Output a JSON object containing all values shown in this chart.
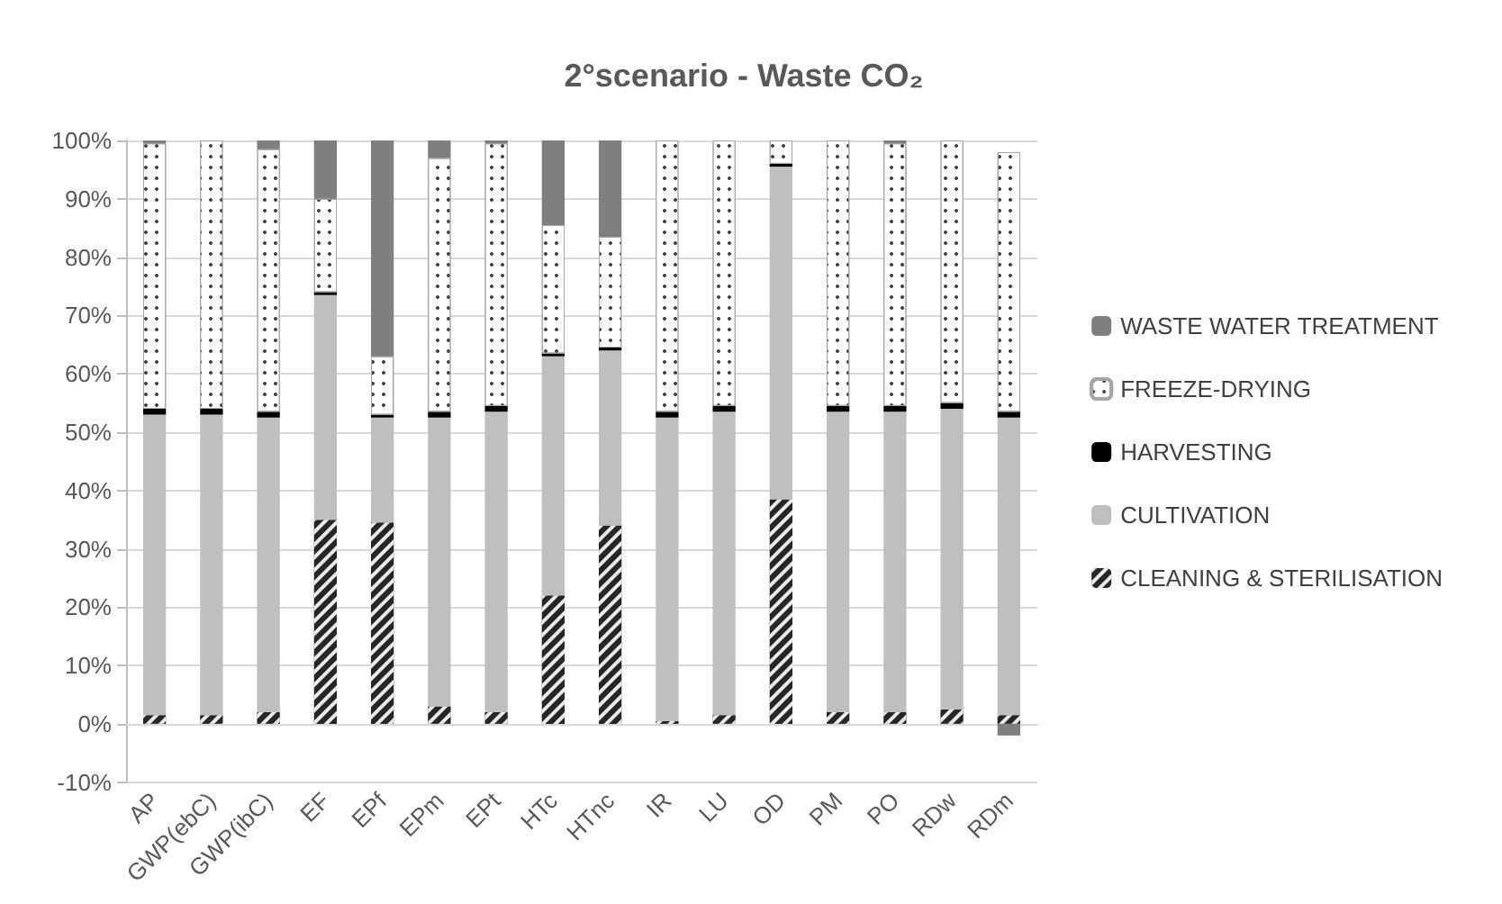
{
  "chart_data": {
    "type": "bar",
    "title": "2°scenario - Waste CO₂",
    "stacked": true,
    "grid": "y",
    "legend": "right",
    "categories": [
      "AP",
      "GWP(ebC)",
      "GWP(ibC)",
      "EF",
      "EPf",
      "EPm",
      "EPt",
      "HTc",
      "HTnc",
      "IR",
      "LU",
      "OD",
      "PM",
      "PO",
      "RDw",
      "RDm"
    ],
    "ylim": [
      -10,
      100
    ],
    "yticks": [
      {
        "value": -10,
        "label": "-10%"
      },
      {
        "value": 0,
        "label": "0%"
      },
      {
        "value": 10,
        "label": "10%"
      },
      {
        "value": 20,
        "label": "20%"
      },
      {
        "value": 30,
        "label": "30%"
      },
      {
        "value": 40,
        "label": "40%"
      },
      {
        "value": 50,
        "label": "50%"
      },
      {
        "value": 60,
        "label": "60%"
      },
      {
        "value": 70,
        "label": "70%"
      },
      {
        "value": 80,
        "label": "80%"
      },
      {
        "value": 90,
        "label": "90%"
      },
      {
        "value": 100,
        "label": "100%"
      }
    ],
    "series": [
      {
        "name": "CLEANING & STERILISATION",
        "color": "#262626",
        "values": [
          1.5,
          1.5,
          2,
          35,
          34.5,
          3,
          2,
          22,
          34,
          0.5,
          1.5,
          38.5,
          2,
          2,
          2.5,
          1.5
        ]
      },
      {
        "name": "CULTIVATION",
        "color": "#bfbfbf",
        "values": [
          51.5,
          51.5,
          50.5,
          38.5,
          18,
          49.5,
          51.5,
          41,
          30,
          52,
          52,
          57,
          51.5,
          51.5,
          51.5,
          51
        ]
      },
      {
        "name": "HARVESTING",
        "color": "#000000",
        "values": [
          1,
          1,
          1,
          0.5,
          0.5,
          1,
          1,
          0.5,
          0.5,
          1,
          1,
          0.5,
          1,
          1,
          1,
          1
        ]
      },
      {
        "name": "FREEZE-DRYING",
        "color": "#ffffff",
        "values": [
          45.5,
          46,
          45,
          16,
          10,
          43.5,
          45,
          22,
          19,
          46.5,
          45.5,
          4,
          45.5,
          45,
          45,
          44.5
        ]
      },
      {
        "name": "WASTE WATER TREATMENT",
        "color": "#7f7f7f",
        "values": [
          0.5,
          0,
          1.5,
          10,
          37,
          3,
          0.5,
          14.5,
          16.5,
          0,
          0,
          0,
          0,
          0.5,
          0,
          -2
        ]
      }
    ]
  }
}
